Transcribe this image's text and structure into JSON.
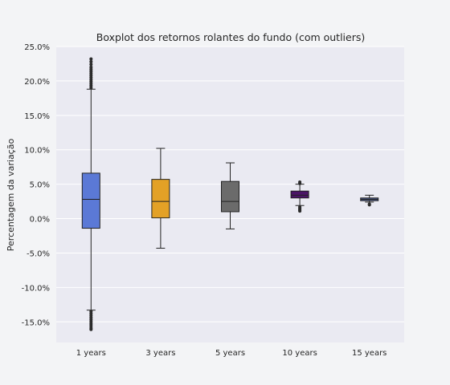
{
  "chart_data": {
    "type": "boxplot",
    "title": "Boxplot dos retornos rolantes do fundo (com outliers)",
    "xlabel": "",
    "ylabel": "Percentagem da variação",
    "ylim": [
      -18,
      25
    ],
    "grid": true,
    "yticks": [
      {
        "value": 25,
        "label": "25.0%"
      },
      {
        "value": 20,
        "label": "20.0%"
      },
      {
        "value": 15,
        "label": "15.0%"
      },
      {
        "value": 10,
        "label": "10.0%"
      },
      {
        "value": 5,
        "label": "5.0%"
      },
      {
        "value": 0,
        "label": "0.0%"
      },
      {
        "value": -5,
        "label": "-5.0%"
      },
      {
        "value": -10,
        "label": "-10.0%"
      },
      {
        "value": -15,
        "label": "-15.0%"
      }
    ],
    "categories": [
      "1 years",
      "3 years",
      "5 years",
      "10 years",
      "15 years"
    ],
    "boxes": [
      {
        "category": "1 years",
        "color": "#5b79d6",
        "whislo": -13.3,
        "q1": -1.4,
        "med": 2.8,
        "q3": 6.6,
        "whishi": 18.8,
        "outliers_high": [
          19.0,
          19.3,
          19.6,
          19.9,
          20.2,
          20.5,
          20.8,
          21.1,
          21.4,
          21.7,
          22.0,
          22.4,
          22.8,
          23.2
        ],
        "outliers_low": [
          -13.5,
          -13.8,
          -14.1,
          -14.4,
          -14.7,
          -15.0,
          -15.3,
          -15.6,
          -15.9,
          -16.1
        ]
      },
      {
        "category": "3 years",
        "color": "#e3a126",
        "whislo": -4.3,
        "q1": 0.1,
        "med": 2.5,
        "q3": 5.7,
        "whishi": 10.2,
        "outliers_high": [],
        "outliers_low": []
      },
      {
        "category": "5 years",
        "color": "#6b6b6b",
        "whislo": -1.5,
        "q1": 1.0,
        "med": 2.5,
        "q3": 5.4,
        "whishi": 8.1,
        "outliers_high": [],
        "outliers_low": []
      },
      {
        "category": "10 years",
        "color": "#4b1466",
        "whislo": 1.9,
        "q1": 3.0,
        "med": 3.4,
        "q3": 4.0,
        "whishi": 5.0,
        "outliers_high": [
          5.1,
          5.3
        ],
        "outliers_low": [
          1.7,
          1.5,
          1.35,
          1.2,
          1.1
        ]
      },
      {
        "category": "15 years",
        "color": "#4a5a8c",
        "whislo": 2.4,
        "q1": 2.6,
        "med": 2.8,
        "q3": 3.0,
        "whishi": 3.4,
        "outliers_high": [],
        "outliers_low": [
          2.1,
          2.0
        ]
      }
    ]
  }
}
